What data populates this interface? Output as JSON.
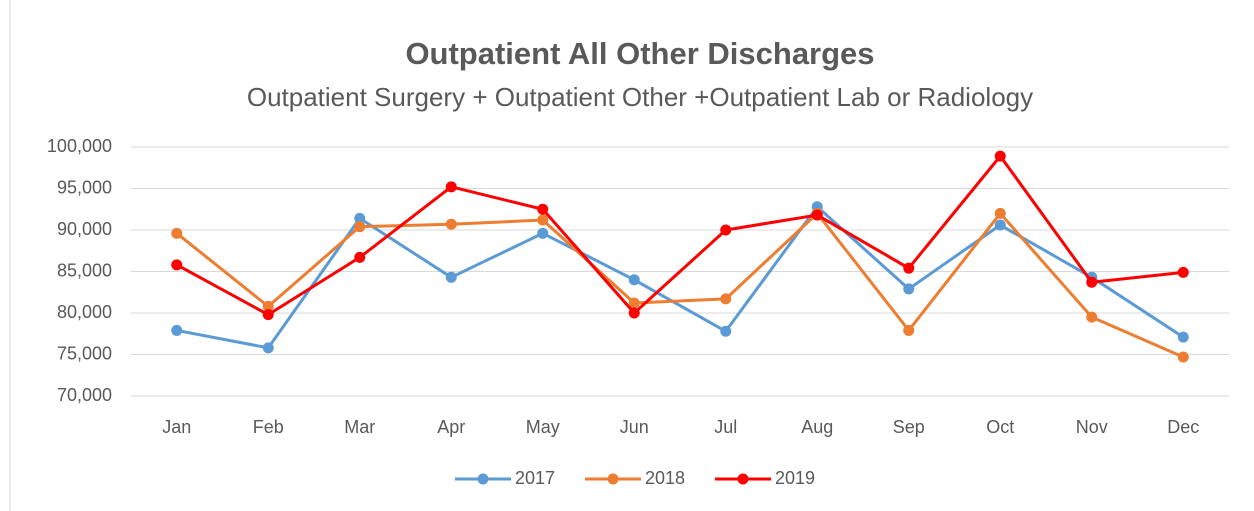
{
  "chart_data": {
    "type": "line",
    "title": "Outpatient All Other Discharges",
    "subtitle": "Outpatient Surgery + Outpatient Other +Outpatient Lab or Radiology",
    "categories": [
      "Jan",
      "Feb",
      "Mar",
      "Apr",
      "May",
      "Jun",
      "Jul",
      "Aug",
      "Sep",
      "Oct",
      "Nov",
      "Dec"
    ],
    "series": [
      {
        "name": "2017",
        "color": "#5b9bd5",
        "values": [
          77900,
          75800,
          91400,
          84300,
          89600,
          84000,
          77800,
          92800,
          82900,
          90600,
          84300,
          77100
        ]
      },
      {
        "name": "2018",
        "color": "#ed7d31",
        "values": [
          89600,
          80800,
          90400,
          90700,
          91200,
          81200,
          81700,
          92000,
          77900,
          92000,
          79500,
          74700
        ]
      },
      {
        "name": "2019",
        "color": "#ff0000",
        "values": [
          85800,
          79800,
          86700,
          95200,
          92500,
          80000,
          90000,
          91800,
          85400,
          98900,
          83700,
          84900
        ]
      }
    ],
    "ylim": [
      70000,
      100000
    ],
    "yticks": [
      {
        "value": 70000,
        "label": "70,000"
      },
      {
        "value": 75000,
        "label": "75,000"
      },
      {
        "value": 80000,
        "label": "80,000"
      },
      {
        "value": 85000,
        "label": "85,000"
      },
      {
        "value": 90000,
        "label": "90,000"
      },
      {
        "value": 95000,
        "label": "95,000"
      },
      {
        "value": 100000,
        "label": "100,000"
      }
    ],
    "grid": true,
    "legend": "bottom"
  }
}
